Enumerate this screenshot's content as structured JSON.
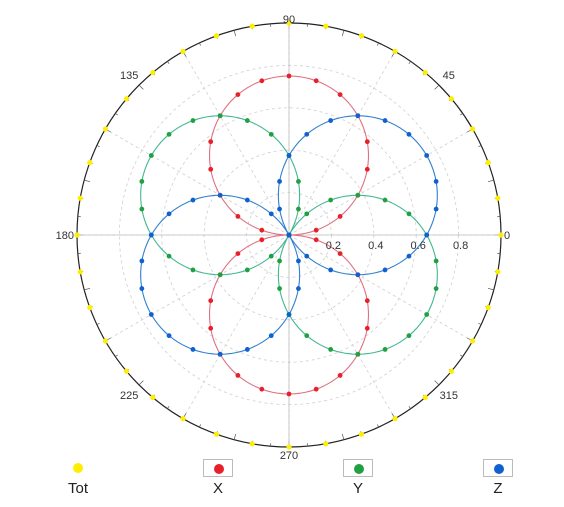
{
  "chart_data": {
    "type": "polar-scatter-line",
    "theta_unit": "degrees",
    "r_max": 1.0,
    "angle_tick_labels": [
      "0",
      "45",
      "90",
      "135",
      "180",
      "225",
      "270",
      "315"
    ],
    "radial_tick_labels": [
      "0.2",
      "0.4",
      "0.6",
      "0.8"
    ],
    "radial_ticks": [
      0.2,
      0.4,
      0.6,
      0.8
    ],
    "grid": true,
    "legend_placement": "bottom",
    "series": [
      {
        "name": "Tot",
        "color": "#ffee00",
        "shape": "constant-radius",
        "r": 1.0,
        "step_deg": 10,
        "boxed_legend": false
      },
      {
        "name": "X",
        "color": "#e8202a",
        "line_color": "#e07080",
        "shape": "cos-lobes",
        "lobe_centers_deg": [
          90,
          270
        ],
        "amplitude": 0.75,
        "step_deg": 10,
        "boxed_legend": true
      },
      {
        "name": "Y",
        "color": "#20a040",
        "line_color": "#40b890",
        "shape": "cos-lobes",
        "lobe_centers_deg": [
          150,
          330
        ],
        "amplitude": 0.75,
        "step_deg": 10,
        "boxed_legend": true
      },
      {
        "name": "Z",
        "color": "#1060d0",
        "line_color": "#3080d0",
        "shape": "cos-lobes",
        "lobe_centers_deg": [
          30,
          210
        ],
        "amplitude": 0.75,
        "step_deg": 10,
        "boxed_legend": true
      }
    ]
  }
}
